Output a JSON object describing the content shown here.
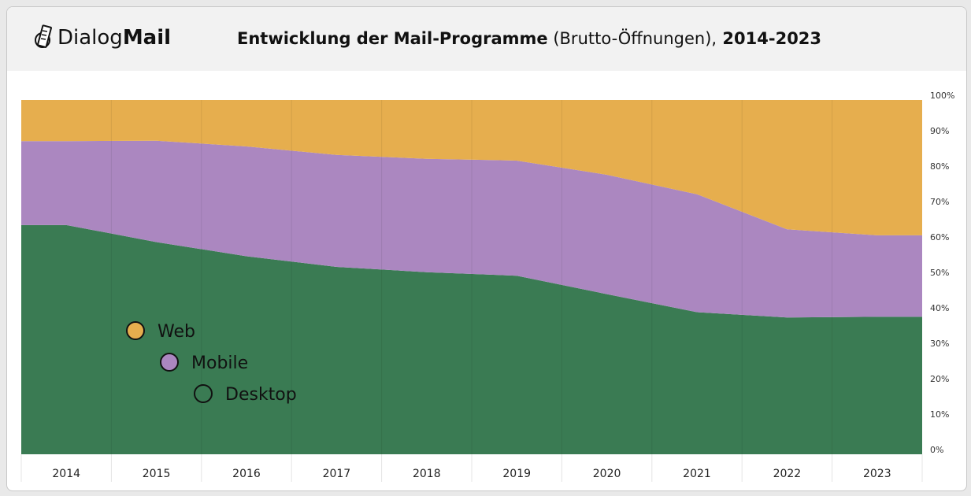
{
  "header": {
    "logo": {
      "light": "Dialog",
      "bold": "Mail"
    },
    "title": {
      "bold1": "Entwicklung der Mail-Programme",
      "normal": " (Brutto-Öffnungen),",
      "bold2": " 2014-2023"
    }
  },
  "chart_data": {
    "type": "area",
    "stacked": true,
    "normalized": true,
    "categories": [
      "2014",
      "2015",
      "2016",
      "2017",
      "2018",
      "2019",
      "2020",
      "2021",
      "2022",
      "2023"
    ],
    "series": [
      {
        "name": "Desktop",
        "color": "#3A7B53",
        "values": [
          64.7,
          59.9,
          55.9,
          52.9,
          51.4,
          50.4,
          45.2,
          40.1,
          38.6,
          38.8
        ]
      },
      {
        "name": "Mobile",
        "color": "#AB87C0",
        "values": [
          23.7,
          28.6,
          31.0,
          31.6,
          32.0,
          32.5,
          33.7,
          33.3,
          24.9,
          23.0
        ]
      },
      {
        "name": "Web",
        "color": "#E6AE4E",
        "values": [
          11.6,
          11.5,
          13.1,
          15.5,
          16.6,
          17.1,
          21.1,
          26.6,
          36.5,
          38.2
        ]
      }
    ],
    "legend_order": [
      "Web",
      "Mobile",
      "Desktop"
    ],
    "ylim": [
      0,
      100
    ],
    "yticks": [
      "0%",
      "10%",
      "20%",
      "30%",
      "40%",
      "50%",
      "60%",
      "70%",
      "80%",
      "90%",
      "100%"
    ],
    "y_axis_side": "right",
    "legend_placement": "inside-bottom-left",
    "grid": "vertical"
  }
}
